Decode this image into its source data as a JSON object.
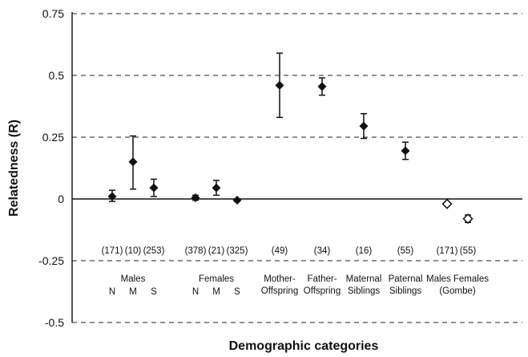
{
  "chart_data": {
    "type": "scatter",
    "title": "",
    "xlabel": "Demographic categories",
    "ylabel": "Relatedness (R)",
    "ylim": [
      -0.5,
      0.75
    ],
    "yticks": [
      0.75,
      0.5,
      0.25,
      0,
      -0.25,
      -0.5
    ],
    "ytick_labels": [
      "0.75",
      "0.5",
      "0.25",
      "0",
      "-0.25",
      "-0.5"
    ],
    "grid": "horizontal dashed",
    "colors": {
      "marker": "#111111",
      "grid": "#222222",
      "axis": "#111111"
    },
    "points": [
      {
        "label": "N",
        "y": 0.01,
        "err_low": -0.01,
        "err_high": 0.035,
        "n": "(171)",
        "marker": "filled-diamond"
      },
      {
        "label": "M",
        "y": 0.15,
        "err_low": 0.04,
        "err_high": 0.255,
        "n": "(10)",
        "marker": "filled-diamond"
      },
      {
        "label": "S",
        "y": 0.045,
        "err_low": 0.01,
        "err_high": 0.08,
        "n": "(253)",
        "marker": "filled-diamond"
      },
      {
        "label": "N",
        "y": 0.005,
        "err_low": -0.005,
        "err_high": 0.015,
        "n": "(378)",
        "marker": "filled-diamond"
      },
      {
        "label": "M",
        "y": 0.045,
        "err_low": 0.015,
        "err_high": 0.075,
        "n": "(21)",
        "marker": "filled-diamond"
      },
      {
        "label": "S",
        "y": -0.005,
        "err_low": -0.01,
        "err_high": 0.0,
        "n": "(325)",
        "marker": "filled-diamond"
      },
      {
        "label": "Mother-Offspring",
        "y": 0.46,
        "err_low": 0.33,
        "err_high": 0.59,
        "n": "(49)",
        "marker": "filled-diamond"
      },
      {
        "label": "Father-Offspring",
        "y": 0.455,
        "err_low": 0.42,
        "err_high": 0.49,
        "n": "(34)",
        "marker": "filled-diamond"
      },
      {
        "label": "Maternal Siblings",
        "y": 0.295,
        "err_low": 0.245,
        "err_high": 0.345,
        "n": "(16)",
        "marker": "filled-diamond"
      },
      {
        "label": "Paternal Siblings",
        "y": 0.195,
        "err_low": 0.16,
        "err_high": 0.23,
        "n": "(55)",
        "marker": "filled-diamond"
      },
      {
        "label": "Males",
        "y": -0.02,
        "err_low": -0.025,
        "err_high": -0.015,
        "n": "(171)",
        "marker": "open-diamond"
      },
      {
        "label": "Females",
        "y": -0.08,
        "err_low": -0.095,
        "err_high": -0.065,
        "n": "(55)",
        "marker": "open-diamond"
      }
    ],
    "group_labels": [
      {
        "lines": [
          "Males"
        ],
        "anchor_points": [
          0,
          2
        ]
      },
      {
        "lines": [
          "Females"
        ],
        "anchor_points": [
          3,
          5
        ]
      },
      {
        "lines": [
          "Mother-",
          "Offspring"
        ],
        "anchor_points": [
          6,
          6
        ]
      },
      {
        "lines": [
          "Father-",
          "Offspring"
        ],
        "anchor_points": [
          7,
          7
        ]
      },
      {
        "lines": [
          "Maternal",
          "Siblings"
        ],
        "anchor_points": [
          8,
          8
        ]
      },
      {
        "lines": [
          "Paternal",
          "Siblings"
        ],
        "anchor_points": [
          9,
          9
        ]
      },
      {
        "lines": [
          "Males Females",
          "(Gombe)"
        ],
        "anchor_points": [
          10,
          11
        ]
      }
    ]
  }
}
